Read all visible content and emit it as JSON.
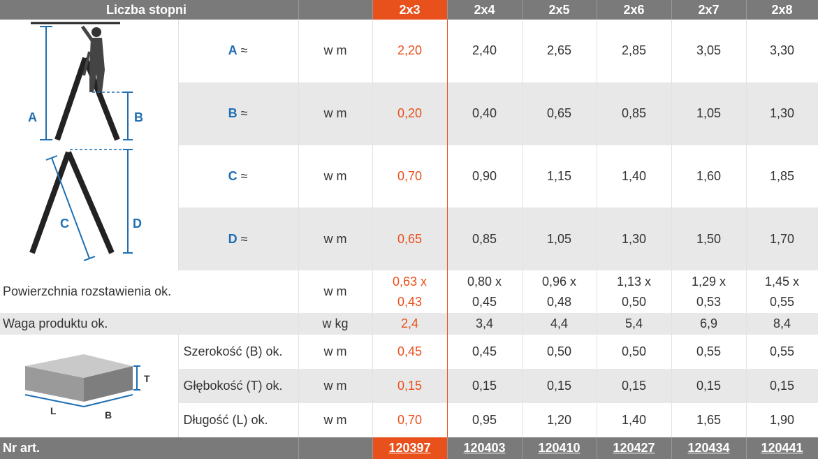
{
  "header": {
    "title": "Liczba stopni",
    "columns": [
      "2x3",
      "2x4",
      "2x5",
      "2x6",
      "2x7",
      "2x8"
    ]
  },
  "diagram_letters": {
    "a": "A",
    "b": "B",
    "c": "C",
    "d": "D",
    "t": "T",
    "l": "L",
    "box_b": "B"
  },
  "rows": [
    {
      "letter": "A",
      "suffix": " ≈",
      "unit": "w m",
      "values": [
        "2,20",
        "2,40",
        "2,65",
        "2,85",
        "3,05",
        "3,30"
      ]
    },
    {
      "letter": "B",
      "suffix": " ≈",
      "unit": "w m",
      "values": [
        "0,20",
        "0,40",
        "0,65",
        "0,85",
        "1,05",
        "1,30"
      ]
    },
    {
      "letter": "C",
      "suffix": " ≈",
      "unit": "w m",
      "values": [
        "0,70",
        "0,90",
        "1,15",
        "1,40",
        "1,60",
        "1,85"
      ]
    },
    {
      "letter": "D",
      "suffix": " ≈",
      "unit": "w m",
      "values": [
        "0,65",
        "0,85",
        "1,05",
        "1,30",
        "1,50",
        "1,70"
      ]
    }
  ],
  "surface": {
    "label": "Powierzchnia rozstawienia ok.",
    "unit": "w m",
    "values": [
      [
        "0,63 x",
        "0,43"
      ],
      [
        "0,80 x",
        "0,45"
      ],
      [
        "0,96 x",
        "0,48"
      ],
      [
        "1,13 x",
        "0,50"
      ],
      [
        "1,29 x",
        "0,53"
      ],
      [
        "1,45 x",
        "0,55"
      ]
    ]
  },
  "weight": {
    "label": "Waga produktu ok.",
    "unit": "w kg",
    "values": [
      "2,4",
      "3,4",
      "4,4",
      "5,4",
      "6,9",
      "8,4"
    ]
  },
  "package": [
    {
      "label": "Szerokość (B) ok.",
      "unit": "w m",
      "values": [
        "0,45",
        "0,45",
        "0,50",
        "0,50",
        "0,55",
        "0,55"
      ]
    },
    {
      "label": "Głębokość (T) ok.",
      "unit": "w m",
      "values": [
        "0,15",
        "0,15",
        "0,15",
        "0,15",
        "0,15",
        "0,15"
      ]
    },
    {
      "label": "Długość (L) ok.",
      "unit": "w m",
      "values": [
        "0,70",
        "0,95",
        "1,20",
        "1,40",
        "1,65",
        "1,90"
      ]
    }
  ],
  "footer": {
    "label": "Nr art.",
    "articles": [
      "120397",
      "120403",
      "120410",
      "120427",
      "120434",
      "120441"
    ]
  },
  "colors": {
    "accent": "#e8501c",
    "header_bg": "#7a7a7a",
    "stripe": "#e8e8e8",
    "letter_blue": "#1f6fb2"
  }
}
